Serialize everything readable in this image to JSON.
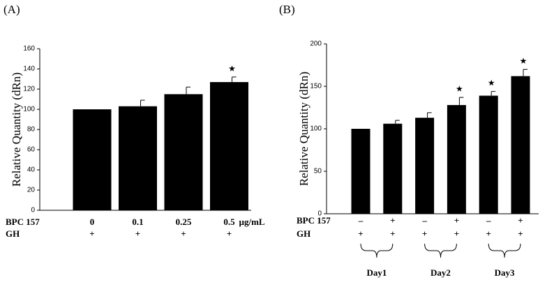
{
  "chart_data": [
    {
      "type": "bar",
      "panel": "(A)",
      "y_label": "Relative Quantity (dRn)",
      "values": [
        100,
        103,
        115,
        127
      ],
      "errors": [
        0,
        6,
        7,
        5
      ],
      "color": "#000000",
      "ylim": [
        0,
        160
      ],
      "yticks": [
        0,
        20,
        40,
        60,
        80,
        100,
        120,
        140,
        160
      ],
      "significant": [
        false,
        false,
        false,
        true
      ],
      "significance_marker": "★",
      "rows": [
        {
          "name": "BPC 157",
          "labels": [
            "0",
            "0.1",
            "0.25",
            "0.5"
          ]
        },
        {
          "name": "GH",
          "labels": [
            "+",
            "+",
            "+",
            "+"
          ]
        }
      ],
      "row_unit": "µg/mL"
    },
    {
      "type": "bar",
      "panel": "(B)",
      "y_label": "Relative Quantity (dRn)",
      "values": [
        100,
        106,
        113,
        128,
        139,
        162
      ],
      "errors": [
        0,
        4,
        6,
        9,
        5,
        8
      ],
      "color": "#000000",
      "ylim": [
        0,
        200
      ],
      "yticks": [
        0,
        50,
        100,
        150,
        200
      ],
      "significant": [
        false,
        false,
        false,
        true,
        true,
        true
      ],
      "significance_marker": "★",
      "rows": [
        {
          "name": "BPC 157",
          "labels": [
            "–",
            "+",
            "–",
            "+",
            "–",
            "+"
          ]
        },
        {
          "name": "GH",
          "labels": [
            "+",
            "+",
            "+",
            "+",
            "+",
            "+"
          ]
        }
      ],
      "groups": [
        "Day1",
        "Day2",
        "Day3"
      ]
    }
  ]
}
